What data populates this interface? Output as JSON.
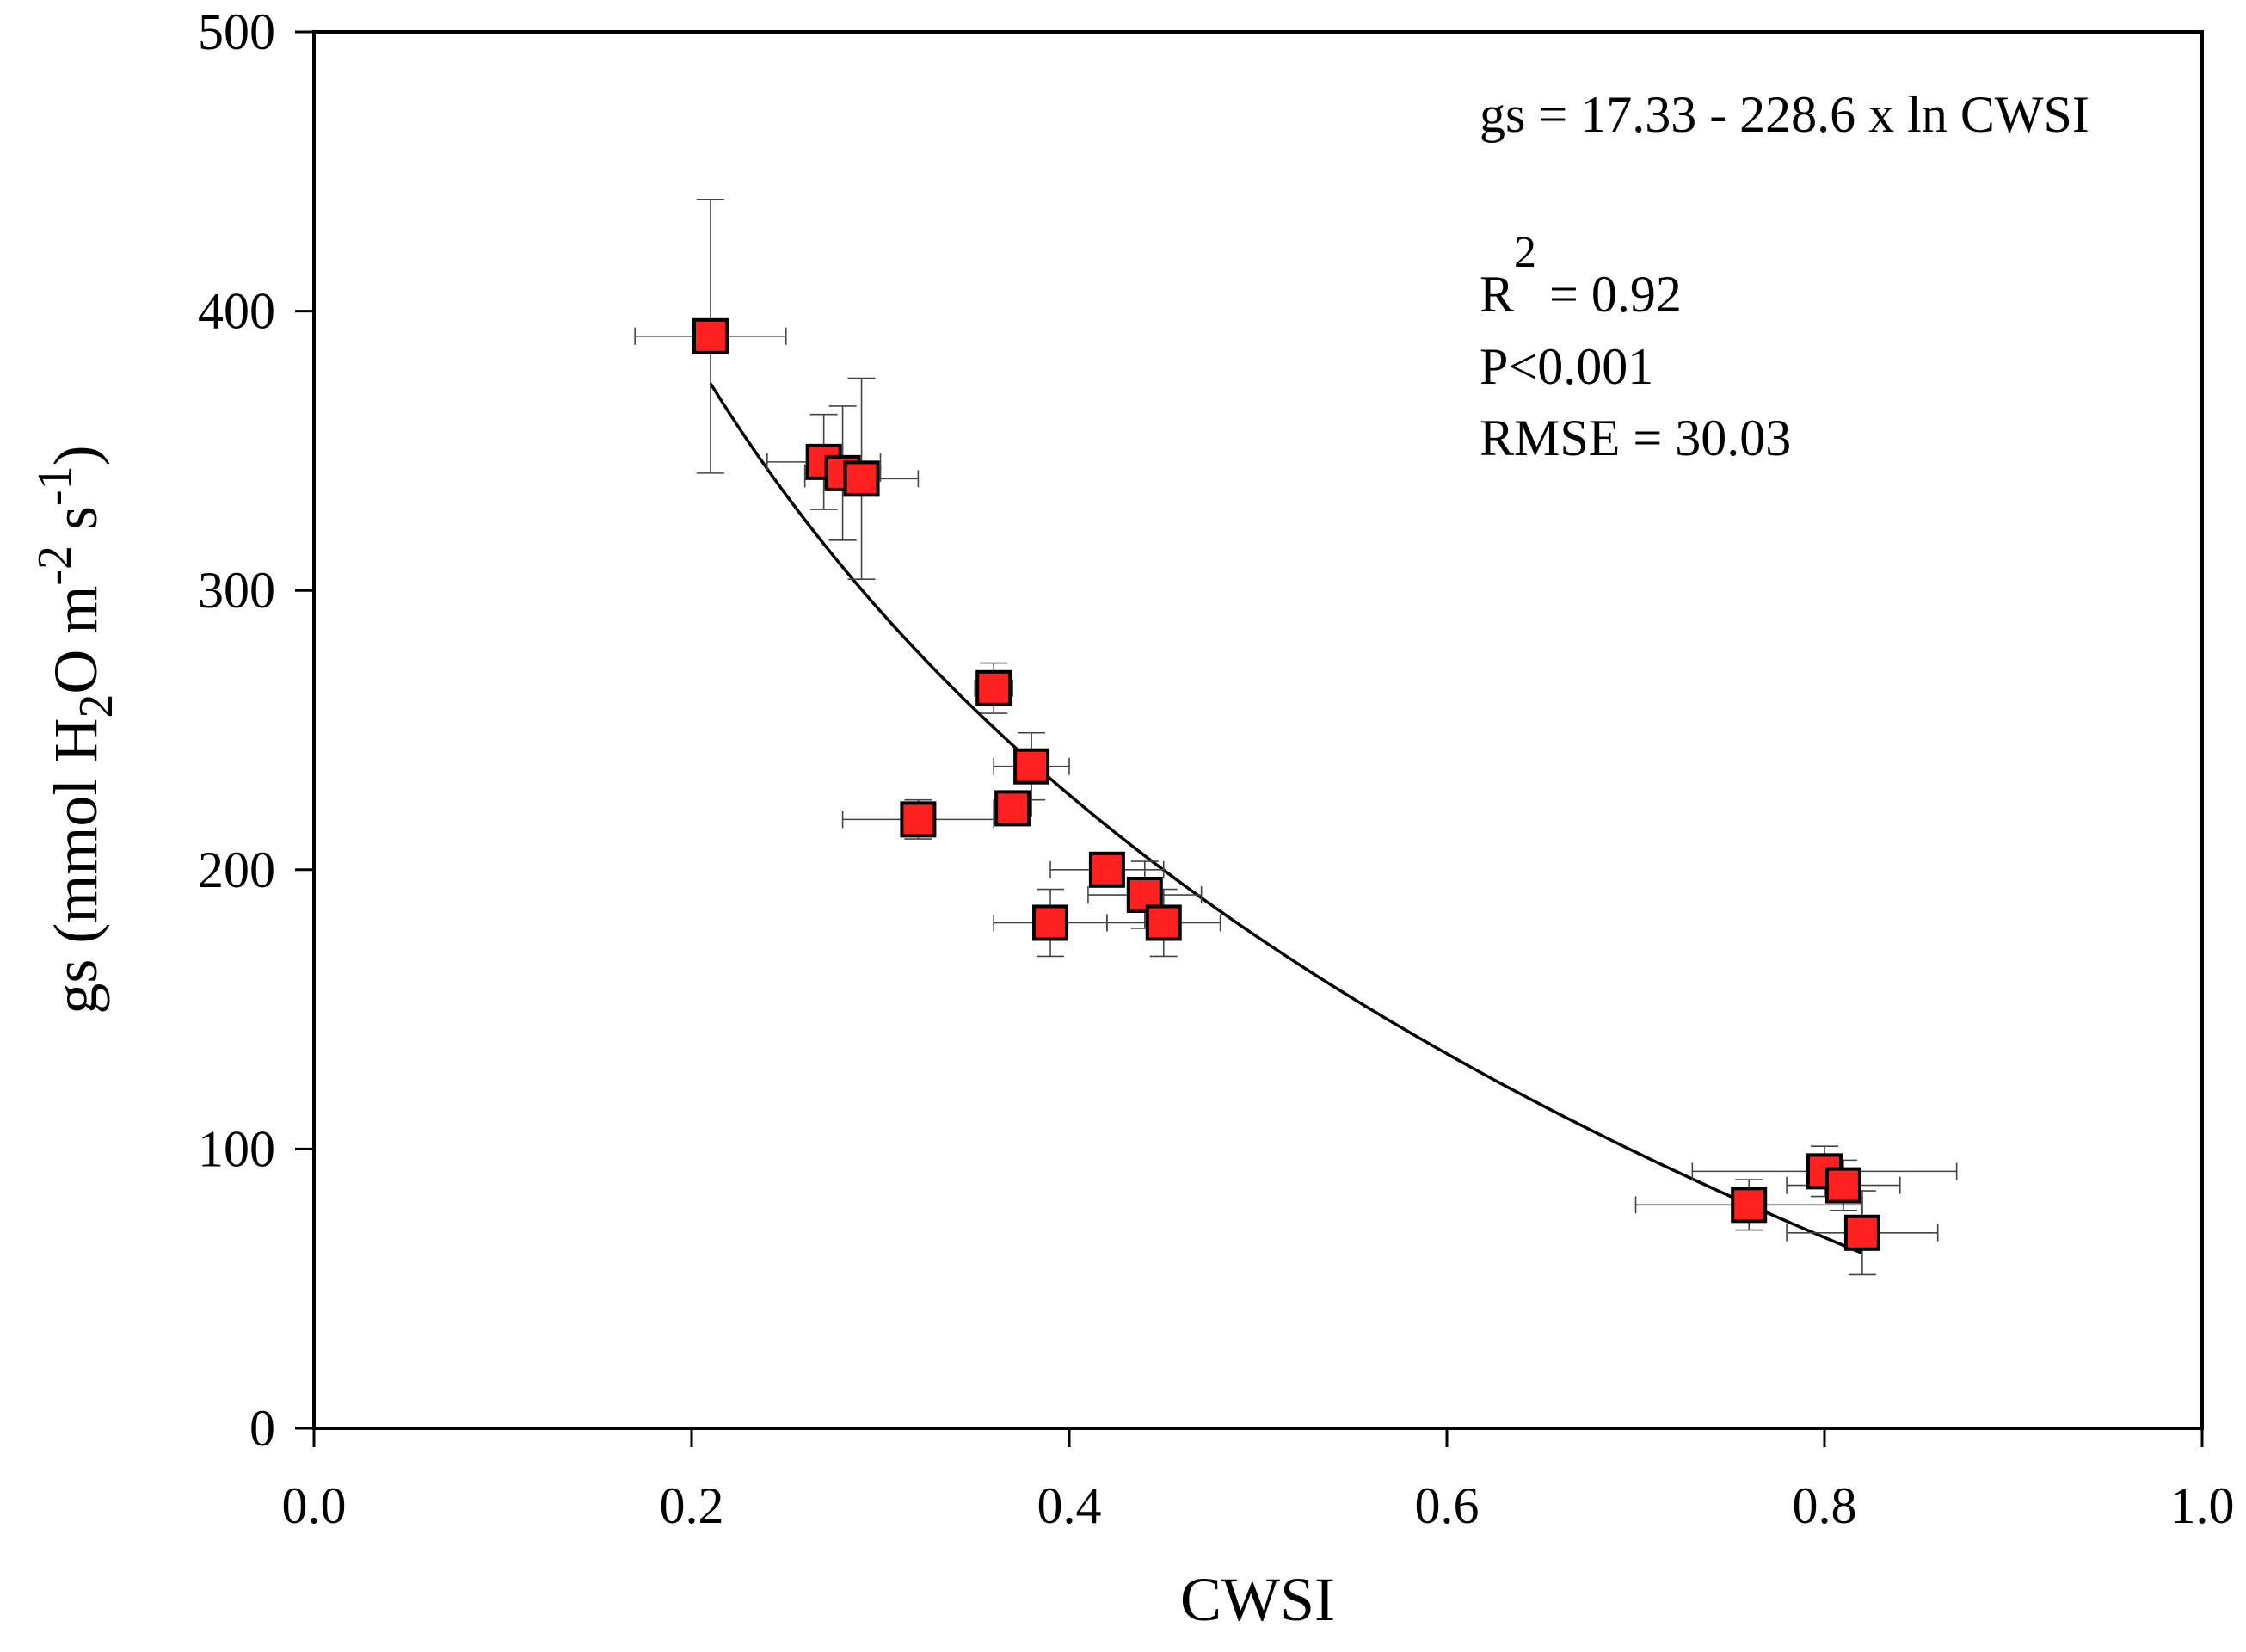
{
  "chart_data": {
    "type": "scatter",
    "title": "",
    "xlabel": "CWSI",
    "ylabel": {
      "prefix": "gs (mmol H",
      "sub": "2",
      "mid": "O m",
      "sup1": "-2",
      "s": " s",
      "sup2": "-1",
      "suffix": ")"
    },
    "xlim": [
      0.0,
      1.0
    ],
    "ylim": [
      0,
      500
    ],
    "x_ticks": [
      {
        "value": 0.0,
        "label": "0.0"
      },
      {
        "value": 0.2,
        "label": "0.2"
      },
      {
        "value": 0.4,
        "label": "0.4"
      },
      {
        "value": 0.6,
        "label": "0.6"
      },
      {
        "value": 0.8,
        "label": "0.8"
      },
      {
        "value": 1.0,
        "label": "1.0"
      }
    ],
    "y_ticks": [
      {
        "value": 0,
        "label": "0"
      },
      {
        "value": 100,
        "label": "100"
      },
      {
        "value": 200,
        "label": "200"
      },
      {
        "value": 300,
        "label": "300"
      },
      {
        "value": 400,
        "label": "400"
      },
      {
        "value": 500,
        "label": "500"
      }
    ],
    "grid": false,
    "marker_color": "#ff2020",
    "line_color": "#000000",
    "points": [
      {
        "x": 0.21,
        "y": 391,
        "xerr": 0.04,
        "yerr": 49
      },
      {
        "x": 0.27,
        "y": 346,
        "xerr": 0.03,
        "yerr": 17
      },
      {
        "x": 0.28,
        "y": 342,
        "xerr": 0.02,
        "yerr": 24
      },
      {
        "x": 0.29,
        "y": 340,
        "xerr": 0.03,
        "yerr": 36
      },
      {
        "x": 0.36,
        "y": 265,
        "xerr": 0.01,
        "yerr": 9
      },
      {
        "x": 0.38,
        "y": 237,
        "xerr": 0.02,
        "yerr": 12
      },
      {
        "x": 0.37,
        "y": 222,
        "xerr": 0.01,
        "yerr": 5
      },
      {
        "x": 0.32,
        "y": 218,
        "xerr": 0.04,
        "yerr": 7
      },
      {
        "x": 0.42,
        "y": 200,
        "xerr": 0.03,
        "yerr": 5
      },
      {
        "x": 0.44,
        "y": 191,
        "xerr": 0.03,
        "yerr": 12
      },
      {
        "x": 0.39,
        "y": 181,
        "xerr": 0.03,
        "yerr": 12
      },
      {
        "x": 0.45,
        "y": 181,
        "xerr": 0.03,
        "yerr": 12
      },
      {
        "x": 0.76,
        "y": 80,
        "xerr": 0.06,
        "yerr": 9
      },
      {
        "x": 0.8,
        "y": 92,
        "xerr": 0.07,
        "yerr": 9
      },
      {
        "x": 0.81,
        "y": 87,
        "xerr": 0.03,
        "yerr": 9
      },
      {
        "x": 0.82,
        "y": 70,
        "xerr": 0.04,
        "yerr": 15
      }
    ],
    "fit": {
      "a": 17.33,
      "b": -228.6,
      "x_range": [
        0.21,
        0.82
      ]
    },
    "annotations": {
      "equation": "gs = 17.33  - 228.6  x  ln CWSI",
      "r2_letter": "R",
      "r2_sup": "2",
      "r2_value": " = 0.92",
      "p_value": "P<0.001",
      "rmse": "RMSE = 30.03"
    }
  }
}
